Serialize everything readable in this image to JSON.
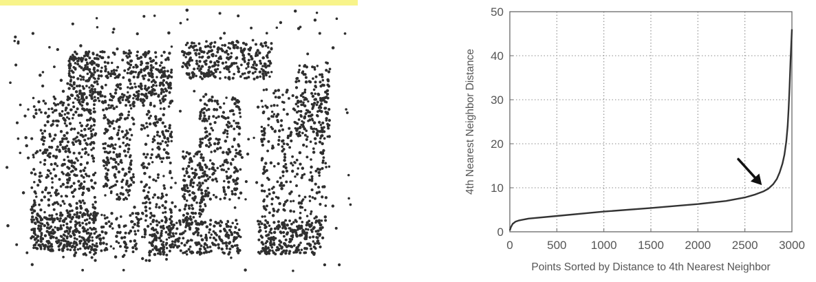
{
  "chart_data": [
    {
      "type": "scatter",
      "title": "",
      "xlabel": "",
      "ylabel": "",
      "highlight_color": "#f8f48a",
      "point_color": "#2f2f2f",
      "description_of_shapes": [
        {
          "shape": "rect",
          "x": [
            2,
            36
          ],
          "y": [
            40,
            96
          ]
        },
        {
          "shape": "rect",
          "x": [
            14,
            24
          ],
          "y": [
            4,
            96
          ]
        }
      ]
    },
    {
      "type": "line",
      "title": "",
      "xlabel": "Points Sorted by Distance to 4th Nearest Neighbor",
      "ylabel": "4th Nearest Neighbor Distance",
      "xlim": [
        0,
        3000
      ],
      "ylim": [
        0,
        50
      ],
      "xticks": [
        "0",
        "500",
        "1000",
        "1500",
        "2000",
        "2500",
        "3000"
      ],
      "yticks": [
        "0",
        "10",
        "20",
        "30",
        "40",
        "50"
      ],
      "grid": true,
      "line_color": "#333333",
      "x": [
        0,
        10,
        30,
        60,
        100,
        200,
        500,
        1000,
        1500,
        2000,
        2300,
        2500,
        2600,
        2700,
        2750,
        2800,
        2840,
        2870,
        2900,
        2920,
        2940,
        2955,
        2965,
        2975,
        2985,
        3000
      ],
      "y": [
        0.3,
        1.0,
        1.8,
        2.3,
        2.6,
        3.0,
        3.6,
        4.6,
        5.4,
        6.3,
        7.0,
        7.8,
        8.4,
        9.2,
        9.8,
        10.8,
        12.0,
        13.5,
        15.5,
        17.5,
        20.5,
        24.0,
        28.0,
        33.0,
        39.0,
        46.0
      ],
      "annotations": [
        {
          "type": "arrow",
          "from": [
            2430,
            16.5
          ],
          "to": [
            2680,
            10.6
          ]
        }
      ]
    }
  ]
}
